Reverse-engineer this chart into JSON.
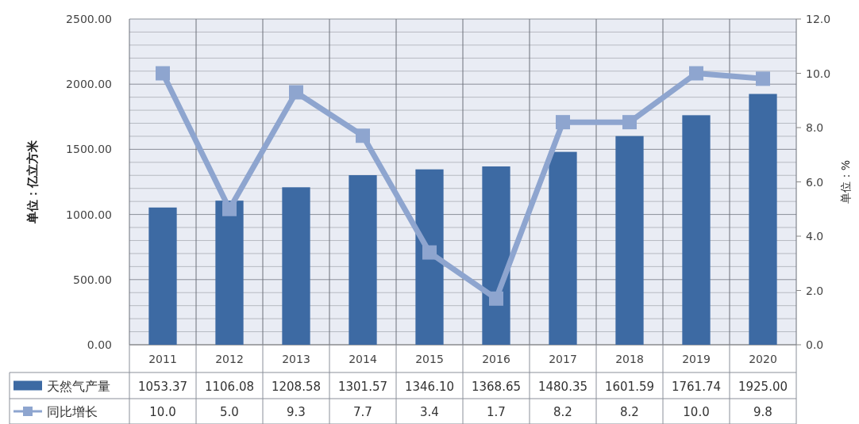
{
  "chart_data": {
    "type": "bar",
    "ylabel": "单位：亿立方米",
    "y2label": "单位：%",
    "categories": [
      "2011",
      "2012",
      "2013",
      "2014",
      "2015",
      "2016",
      "2017",
      "2018",
      "2019",
      "2020"
    ],
    "series": [
      {
        "name": "天然气产量",
        "color": "#3d6aa3",
        "values": [
          1053.37,
          1106.08,
          1208.58,
          1301.57,
          1346.1,
          1368.65,
          1480.35,
          1601.59,
          1761.74,
          1925.0
        ],
        "value_labels": [
          "1053.37",
          "1106.08",
          "1208.58",
          "1301.57",
          "1346.10",
          "1368.65",
          "1480.35",
          "1601.59",
          "1761.74",
          "1925.00"
        ]
      },
      {
        "name": "同比增长",
        "type": "line",
        "axis": "y2",
        "color": "#8ea5cf",
        "marker": "square",
        "values": [
          10.0,
          5.0,
          9.3,
          7.7,
          3.4,
          1.7,
          8.2,
          8.2,
          10.0,
          9.8
        ],
        "value_labels": [
          "10.0",
          "5.0",
          "9.3",
          "7.7",
          "3.4",
          "1.7",
          "8.2",
          "8.2",
          "10.0",
          "9.8"
        ]
      }
    ],
    "ylim": [
      0,
      2500
    ],
    "yticks": [
      {
        "value": 0,
        "label": "0.00"
      },
      {
        "value": 500,
        "label": "500.00"
      },
      {
        "value": 1000,
        "label": "1000.00"
      },
      {
        "value": 1500,
        "label": "1500.00"
      },
      {
        "value": 2000,
        "label": "2000.00"
      },
      {
        "value": 2500,
        "label": "2500.00"
      }
    ],
    "y2lim": [
      0,
      12
    ],
    "y2ticks": [
      {
        "value": 0,
        "label": "0.0"
      },
      {
        "value": 2,
        "label": "2.0"
      },
      {
        "value": 4,
        "label": "4.0"
      },
      {
        "value": 6,
        "label": "6.0"
      },
      {
        "value": 8,
        "label": "8.0"
      },
      {
        "value": 10,
        "label": "10.0"
      },
      {
        "value": 12,
        "label": "12.0"
      }
    ],
    "grid": true,
    "legend": "bottom"
  }
}
